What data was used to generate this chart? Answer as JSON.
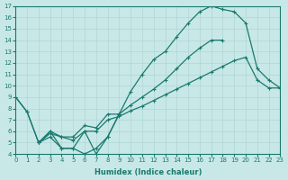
{
  "xlabel": "Humidex (Indice chaleur)",
  "bg_color": "#c8e8e8",
  "line_color": "#1a7a6e",
  "grid_color": "#b0d4d4",
  "xlim": [
    0,
    23
  ],
  "ylim": [
    4,
    17
  ],
  "xticks": [
    0,
    1,
    2,
    3,
    4,
    5,
    6,
    7,
    8,
    9,
    10,
    11,
    12,
    13,
    14,
    15,
    16,
    17,
    18,
    19,
    20,
    21,
    22,
    23
  ],
  "yticks": [
    4,
    5,
    6,
    7,
    8,
    9,
    10,
    11,
    12,
    13,
    14,
    15,
    16,
    17
  ],
  "curves": [
    {
      "x": [
        0,
        1,
        2,
        3,
        4,
        5,
        6,
        7,
        8,
        9
      ],
      "y": [
        9.0,
        7.7,
        5.0,
        5.5,
        4.5,
        4.5,
        4.0,
        4.5,
        5.5,
        7.5
      ]
    },
    {
      "x": [
        2,
        3,
        4,
        5,
        6,
        7,
        8,
        9,
        10,
        11,
        12,
        13,
        14,
        15,
        16,
        17,
        18
      ],
      "y": [
        5.0,
        6.0,
        5.5,
        5.5,
        6.5,
        6.3,
        7.5,
        7.5,
        8.3,
        9.0,
        9.7,
        10.5,
        11.5,
        12.5,
        13.3,
        14.0,
        14.0
      ]
    },
    {
      "x": [
        2,
        3,
        4,
        5,
        6,
        7,
        8,
        9,
        10,
        11,
        12,
        13,
        14,
        15,
        16,
        17,
        18,
        19,
        20,
        21,
        22,
        23
      ],
      "y": [
        5.0,
        5.8,
        5.5,
        5.2,
        6.0,
        6.0,
        7.0,
        7.3,
        7.8,
        8.2,
        8.7,
        9.2,
        9.7,
        10.2,
        10.7,
        11.2,
        11.7,
        12.2,
        12.5,
        10.5,
        9.8,
        9.8
      ]
    },
    {
      "x": [
        0,
        1,
        2,
        3,
        4,
        5,
        6,
        7,
        8,
        9,
        10,
        11,
        12,
        13,
        14,
        15,
        16,
        17,
        18,
        19,
        20,
        21,
        22,
        23
      ],
      "y": [
        9.0,
        7.7,
        5.0,
        6.0,
        4.5,
        4.5,
        6.0,
        4.0,
        5.5,
        7.5,
        9.5,
        11.0,
        12.3,
        13.0,
        14.3,
        15.5,
        16.5,
        17.0,
        16.7,
        16.5,
        15.5,
        11.5,
        10.5,
        9.8
      ]
    }
  ]
}
